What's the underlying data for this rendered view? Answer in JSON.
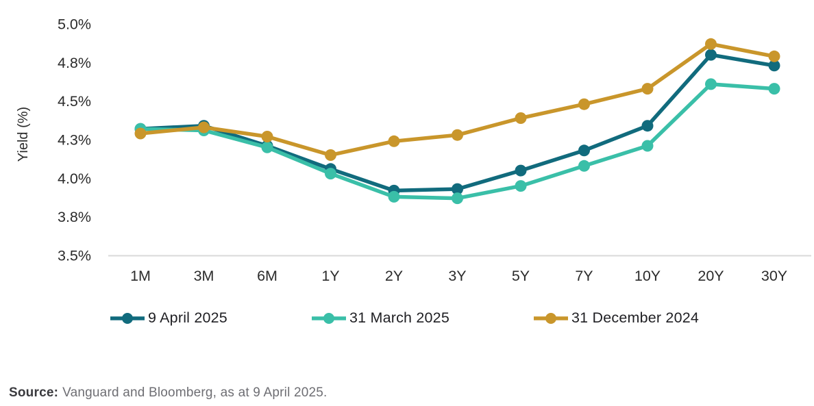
{
  "chart_data": {
    "type": "line",
    "title": "",
    "categories": [
      "1M",
      "3M",
      "6M",
      "1Y",
      "2Y",
      "3Y",
      "5Y",
      "7Y",
      "10Y",
      "20Y",
      "30Y"
    ],
    "series": [
      {
        "name": "9 April 2025",
        "color": "#116B7D",
        "values": [
          4.32,
          4.34,
          4.21,
          4.06,
          3.92,
          3.93,
          4.05,
          4.18,
          4.34,
          4.8,
          4.73
        ]
      },
      {
        "name": "31 March 2025",
        "color": "#3ABFA8",
        "values": [
          4.32,
          4.31,
          4.2,
          4.03,
          3.88,
          3.87,
          3.95,
          4.08,
          4.21,
          4.61,
          4.58
        ]
      },
      {
        "name": "31 December 2024",
        "color": "#C9962B",
        "values": [
          4.29,
          4.33,
          4.27,
          4.15,
          4.24,
          4.28,
          4.39,
          4.48,
          4.58,
          4.87,
          4.79
        ]
      }
    ],
    "xlabel": "",
    "ylabel": "Yield (%)",
    "ylim": [
      3.5,
      5.0
    ],
    "y_ticks": [
      {
        "value": 3.5,
        "label": "3.5%"
      },
      {
        "value": 3.75,
        "label": "3.8%"
      },
      {
        "value": 4.0,
        "label": "4.0%"
      },
      {
        "value": 4.25,
        "label": "4.3%"
      },
      {
        "value": 4.5,
        "label": "4.5%"
      },
      {
        "value": 4.75,
        "label": "4.8%"
      },
      {
        "value": 5.0,
        "label": "5.0%"
      }
    ],
    "grid": false,
    "legend_position": "bottom",
    "axis_line_color": "#D9D9D9",
    "text_color": "#2B2B2B"
  },
  "source": {
    "label": "Source:",
    "text": "Vanguard and Bloomberg, as at 9 April 2025."
  }
}
